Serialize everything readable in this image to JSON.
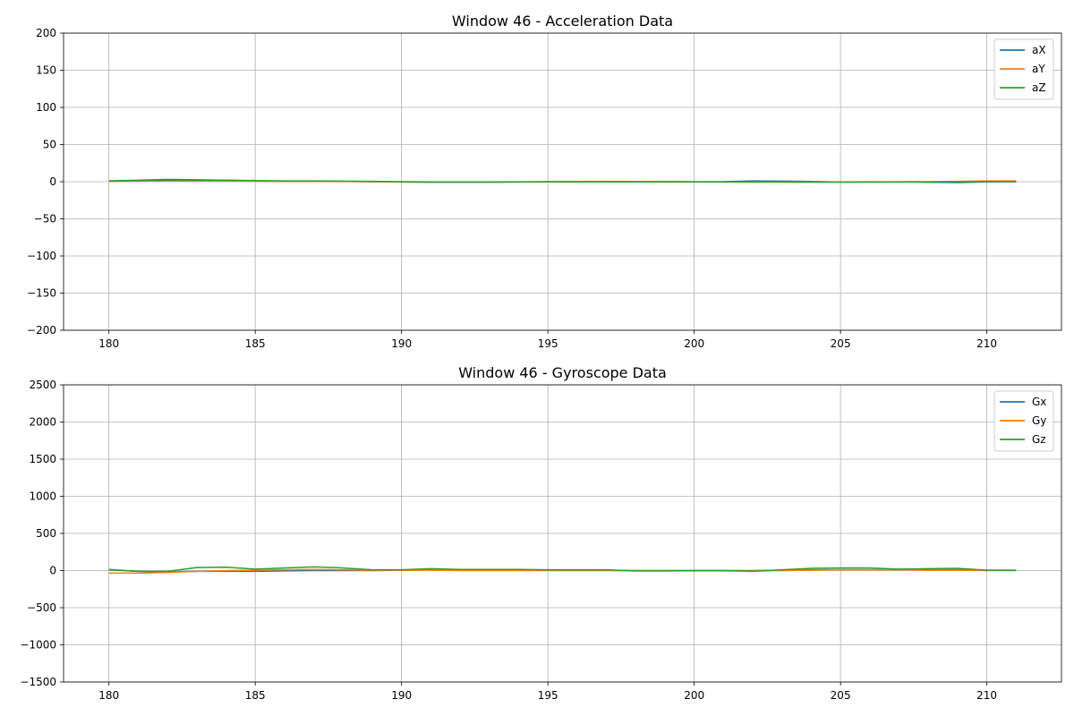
{
  "chart_data": [
    {
      "type": "line",
      "title": "Window 46 - Acceleration Data",
      "xlabel": "",
      "ylabel": "",
      "xlim": [
        178.45,
        212.55
      ],
      "ylim": [
        -200,
        200
      ],
      "xticks": [
        180,
        185,
        190,
        195,
        200,
        205,
        210
      ],
      "yticks": [
        -200,
        -150,
        -100,
        -50,
        0,
        50,
        100,
        150,
        200
      ],
      "ytick_labels": [
        "−200",
        "−150",
        "−100",
        "−50",
        "0",
        "50",
        "100",
        "150",
        "200"
      ],
      "xtick_labels": [
        "180",
        "185",
        "190",
        "195",
        "200",
        "205",
        "210"
      ],
      "grid": true,
      "legend_position": "top-right",
      "x": [
        180,
        181,
        182,
        183,
        184,
        185,
        186,
        187,
        188,
        189,
        190,
        191,
        192,
        193,
        194,
        195,
        196,
        197,
        198,
        199,
        200,
        201,
        202,
        203,
        204,
        205,
        206,
        207,
        208,
        209,
        210,
        211
      ],
      "series": [
        {
          "name": "aX",
          "color": "#1f77b4",
          "values": [
            1.0,
            2.0,
            3.0,
            2.5,
            2.0,
            1.0,
            0.5,
            0.5,
            0.3,
            0.0,
            -0.5,
            -0.8,
            -0.8,
            -0.8,
            -0.5,
            -0.2,
            0.0,
            0.2,
            0.0,
            0.2,
            -0.2,
            0.0,
            1.0,
            0.8,
            0.3,
            -0.5,
            -0.5,
            -0.3,
            -0.8,
            -1.2,
            -0.3,
            -0.2
          ]
        },
        {
          "name": "aY",
          "color": "#ff7f0e",
          "values": [
            0.5,
            0.8,
            1.0,
            0.8,
            0.7,
            0.6,
            0.5,
            0.5,
            0.4,
            0.0,
            -0.3,
            -0.5,
            -0.5,
            -0.5,
            -0.3,
            0.0,
            0.3,
            0.5,
            0.3,
            0.2,
            -0.2,
            -0.3,
            -0.3,
            -0.3,
            -0.3,
            -0.3,
            -0.2,
            -0.1,
            0.0,
            0.5,
            1.0,
            1.2
          ]
        },
        {
          "name": "aZ",
          "color": "#2ca02c",
          "values": [
            1.0,
            1.5,
            2.0,
            2.0,
            2.0,
            1.5,
            1.0,
            1.0,
            0.8,
            0.5,
            0.0,
            -0.3,
            -0.3,
            -0.3,
            -0.2,
            -0.1,
            -0.2,
            -0.3,
            -0.3,
            -0.2,
            -0.3,
            -0.3,
            -0.5,
            -0.5,
            -0.6,
            -0.6,
            -0.5,
            -0.4,
            -0.3,
            -0.2,
            -0.1,
            -0.1
          ]
        }
      ]
    },
    {
      "type": "line",
      "title": "Window 46 - Gyroscope Data",
      "xlabel": "",
      "ylabel": "",
      "xlim": [
        178.45,
        212.55
      ],
      "ylim": [
        -1500,
        2500
      ],
      "xticks": [
        180,
        185,
        190,
        195,
        200,
        205,
        210
      ],
      "yticks": [
        -1500,
        -1000,
        -500,
        0,
        500,
        1000,
        1500,
        2000,
        2500
      ],
      "ytick_labels": [
        "−1500",
        "−1000",
        "−500",
        "0",
        "500",
        "1000",
        "1500",
        "2000",
        "2500"
      ],
      "xtick_labels": [
        "180",
        "185",
        "190",
        "195",
        "200",
        "205",
        "210"
      ],
      "grid": true,
      "legend_position": "top-right",
      "x": [
        180,
        181,
        182,
        183,
        184,
        185,
        186,
        187,
        188,
        189,
        190,
        191,
        192,
        193,
        194,
        195,
        196,
        197,
        198,
        199,
        200,
        201,
        202,
        203,
        204,
        205,
        206,
        207,
        208,
        209,
        210,
        211
      ],
      "series": [
        {
          "name": "Gx",
          "color": "#1f77b4",
          "values": [
            10,
            -10,
            -20,
            -10,
            -10,
            -10,
            -5,
            0,
            0,
            0,
            5,
            10,
            10,
            10,
            10,
            5,
            5,
            5,
            0,
            0,
            0,
            0,
            0,
            5,
            10,
            10,
            10,
            10,
            10,
            10,
            5,
            5
          ]
        },
        {
          "name": "Gy",
          "color": "#ff7f0e",
          "values": [
            -35,
            -35,
            -25,
            -10,
            0,
            5,
            10,
            15,
            10,
            5,
            5,
            5,
            0,
            0,
            0,
            0,
            0,
            0,
            -5,
            -5,
            -5,
            -5,
            -5,
            0,
            5,
            10,
            10,
            10,
            5,
            5,
            0,
            0
          ]
        },
        {
          "name": "Gz",
          "color": "#2ca02c",
          "values": [
            15,
            -10,
            -10,
            40,
            45,
            20,
            35,
            50,
            35,
            10,
            10,
            25,
            15,
            15,
            15,
            10,
            10,
            10,
            -5,
            -5,
            0,
            0,
            -10,
            10,
            30,
            35,
            35,
            20,
            25,
            30,
            5,
            5
          ]
        }
      ]
    }
  ]
}
